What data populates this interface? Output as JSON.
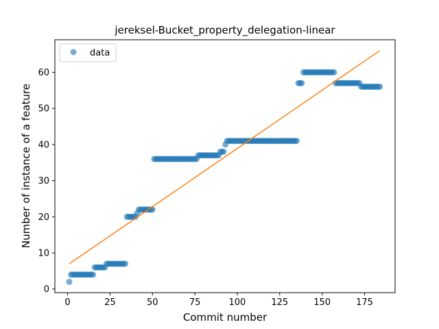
{
  "chart_data": {
    "type": "scatter",
    "title": "jereksel-Bucket_property_delegation-linear",
    "xlabel": "Commit number",
    "ylabel": "Number of instance of a feature",
    "xlim": [
      -7.5,
      193
    ],
    "ylim": [
      -1,
      69
    ],
    "xticks": [
      0,
      25,
      50,
      75,
      100,
      125,
      150,
      175
    ],
    "yticks": [
      0,
      10,
      20,
      30,
      40,
      50,
      60
    ],
    "grid": false,
    "legend": {
      "position": "top-left",
      "entries": [
        "data"
      ]
    },
    "colors": {
      "data": "#1f77b4",
      "fit": "#ff7f0e"
    },
    "series": [
      {
        "name": "data",
        "kind": "scatter",
        "segments": [
          {
            "x_start": 1,
            "x_end": 1,
            "y": 2
          },
          {
            "x_start": 2,
            "x_end": 15,
            "y": 4
          },
          {
            "x_start": 16,
            "x_end": 22,
            "y": 6
          },
          {
            "x_start": 23,
            "x_end": 34,
            "y": 7
          },
          {
            "x_start": 35,
            "x_end": 40,
            "y": 20
          },
          {
            "x_start": 41,
            "x_end": 41,
            "y": 21
          },
          {
            "x_start": 42,
            "x_end": 50,
            "y": 22
          },
          {
            "x_start": 51,
            "x_end": 76,
            "y": 36
          },
          {
            "x_start": 77,
            "x_end": 89,
            "y": 37
          },
          {
            "x_start": 90,
            "x_end": 92,
            "y": 38
          },
          {
            "x_start": 93,
            "x_end": 93,
            "y": 40
          },
          {
            "x_start": 94,
            "x_end": 135,
            "y": 41
          },
          {
            "x_start": 136,
            "x_end": 138,
            "y": 57
          },
          {
            "x_start": 139,
            "x_end": 157,
            "y": 60
          },
          {
            "x_start": 158,
            "x_end": 172,
            "y": 57
          },
          {
            "x_start": 173,
            "x_end": 184,
            "y": 56
          }
        ]
      },
      {
        "name": "",
        "kind": "line",
        "points": [
          [
            1,
            7
          ],
          [
            184,
            66
          ]
        ]
      }
    ]
  }
}
